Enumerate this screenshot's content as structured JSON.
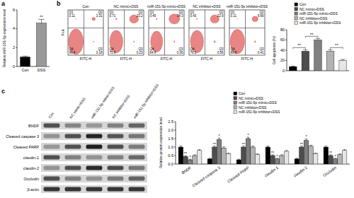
{
  "chart_data": [
    {
      "panel": "a",
      "type": "bar",
      "categories": [
        "Con",
        "DSS"
      ],
      "values": [
        1.0,
        4.6
      ],
      "errors": [
        0.1,
        0.4
      ],
      "colors": [
        "#000000",
        "#999999"
      ],
      "y_label": "Relative miR-151-5p expression level",
      "ylim": [
        0,
        6
      ],
      "yticks": [
        0,
        2,
        4,
        6
      ],
      "annotations": [
        {
          "text": "**",
          "category": 1
        }
      ]
    },
    {
      "panel": "b",
      "type": "flow_cytometry",
      "x_label": "FITC-H",
      "y_label": "PI-A",
      "color": "#d62020",
      "plots": [
        {
          "title": "Con",
          "quadrants": [
            {
              "label": "Q1",
              "value": 0.11
            },
            {
              "label": "Q2",
              "value": 3.31
            },
            {
              "label": "Q3",
              "value": 0.18
            },
            {
              "label": "Q4",
              "value": 96.4
            }
          ]
        },
        {
          "title": "NC mimic+DSS",
          "quadrants": [
            {
              "label": "Q1",
              "value": 0.71
            },
            {
              "label": "Q2",
              "value": 23.2
            },
            {
              "label": "Q3",
              "value": 0.23
            },
            {
              "label": "Q4",
              "value": 75.9
            }
          ]
        },
        {
          "title": "miR-151-5p mimic+DSS",
          "quadrants": [
            {
              "label": "Q1",
              "value": 0.49
            },
            {
              "label": "Q2",
              "value": 34.3
            },
            {
              "label": "Q3",
              "value": 0.36
            },
            {
              "label": "Q4",
              "value": 64.9
            }
          ]
        },
        {
          "title": "NC inhibitor+DSS",
          "quadrants": [
            {
              "label": "Q1",
              "value": 0.43
            },
            {
              "label": "Q2",
              "value": 22.9
            },
            {
              "label": "Q3",
              "value": 0.56
            },
            {
              "label": "Q4",
              "value": 76.1
            }
          ]
        },
        {
          "title": "miR-151-5p inhibitor+DSS",
          "quadrants": [
            {
              "label": "Q1",
              "value": 0.11
            },
            {
              "label": "Q2",
              "value": 9.66
            },
            {
              "label": "Q3",
              "value": 0.41
            },
            {
              "label": "Q4",
              "value": 89.8
            }
          ]
        }
      ]
    },
    {
      "type": "bar",
      "categories": [
        "Con",
        "NC mimic+DSS",
        "miR-151-5p mimic+DSS",
        "NC inhibitor+DSS",
        "miR-151-5p inhibitor+DSS"
      ],
      "values": [
        8,
        38,
        60,
        38,
        20
      ],
      "errors": [
        1,
        3,
        3,
        3,
        2
      ],
      "colors": [
        "#000000",
        "#4d4d4d",
        "#808080",
        "#b3b3b3",
        "#e6e6e6"
      ],
      "y_label": "Cell apoptosis (%)",
      "ylim": [
        0,
        80
      ],
      "yticks": [
        0,
        20,
        40,
        60,
        80
      ],
      "legend": "top",
      "tick_labels": "y",
      "annotations": [
        {
          "text": "**",
          "categories": [
            0,
            1
          ]
        },
        {
          "text": "**",
          "categories": [
            1,
            2
          ]
        },
        {
          "text": "**",
          "categories": [
            3,
            4
          ]
        }
      ]
    },
    {
      "panel": "c",
      "type": "western_blot",
      "rows": [
        "BNDF",
        "Cleaved caspase 3",
        "Cleaved PARP",
        "claudin-1",
        "claudin-2",
        "Occludin",
        "β-actin"
      ],
      "columns": [
        "Con",
        "NC mimic+DSS",
        "miR-151-5p mimic+DSS",
        "NC inhibitor+DSS",
        "miR-151-5p inhibitor+DSS"
      ]
    },
    {
      "type": "bar",
      "categories": [
        "BNDF",
        "Cleaved caspase 3",
        "Cleaved PARP",
        "claudin-1",
        "claudin-2",
        "Occludin"
      ],
      "series": [
        {
          "name": "Con",
          "color": "#000000",
          "values": [
            1.0,
            0.3,
            0.25,
            1.0,
            0.3,
            1.0
          ],
          "errors": [
            0.06,
            0.04,
            0.04,
            0.06,
            0.04,
            0.06
          ]
        },
        {
          "name": "NC mimic+DSS",
          "color": "#4d4d4d",
          "values": [
            0.45,
            1.0,
            1.0,
            0.5,
            1.0,
            0.5
          ],
          "errors": [
            0.05,
            0.06,
            0.06,
            0.05,
            0.06,
            0.05
          ]
        },
        {
          "name": "miR-151-5p mimic+DSS",
          "color": "#808080",
          "values": [
            0.25,
            1.45,
            1.5,
            0.3,
            1.4,
            0.3
          ],
          "errors": [
            0.04,
            0.08,
            0.08,
            0.04,
            0.08,
            0.04
          ]
        },
        {
          "name": "NC inhibitor+DSS",
          "color": "#b3b3b3",
          "values": [
            0.5,
            0.95,
            1.0,
            0.5,
            1.05,
            0.55
          ],
          "errors": [
            0.05,
            0.06,
            0.06,
            0.05,
            0.06,
            0.05
          ]
        },
        {
          "name": "miR-151-5p inhibitor+DSS",
          "color": "#e6e6e6",
          "values": [
            0.8,
            0.6,
            0.55,
            0.75,
            0.6,
            0.8
          ],
          "errors": [
            0.05,
            0.05,
            0.05,
            0.05,
            0.05,
            0.05
          ]
        }
      ],
      "y_label": "Relative protein expression level",
      "ylim": [
        0,
        2.5
      ],
      "yticks": [
        {
          "value": 0,
          "label": "0.0"
        },
        {
          "value": 0.5,
          "label": "0.5"
        },
        {
          "value": 1,
          "label": "1.0"
        },
        {
          "value": 1.5,
          "label": "1.5"
        },
        {
          "value": 2,
          "label": "2.0"
        },
        {
          "value": 2.5,
          "label": "2.5"
        }
      ],
      "legend": "top",
      "annotations": [
        {
          "text": "**",
          "category": 0,
          "series": 1
        },
        {
          "text": "*",
          "category": 0,
          "series": 2
        },
        {
          "text": "**",
          "category": 1,
          "series": 1
        },
        {
          "text": "*",
          "category": 1,
          "series": 2
        },
        {
          "text": "**",
          "category": 2,
          "series": 1
        },
        {
          "text": "*",
          "category": 2,
          "series": 2
        },
        {
          "text": "**",
          "category": 3,
          "series": 1
        },
        {
          "text": "*",
          "category": 3,
          "series": 2
        },
        {
          "text": "**",
          "category": 4,
          "series": 1
        },
        {
          "text": "*",
          "category": 4,
          "series": 2
        },
        {
          "text": "**",
          "category": 5,
          "series": 1
        },
        {
          "text": "*",
          "category": 5,
          "series": 2
        }
      ]
    }
  ]
}
